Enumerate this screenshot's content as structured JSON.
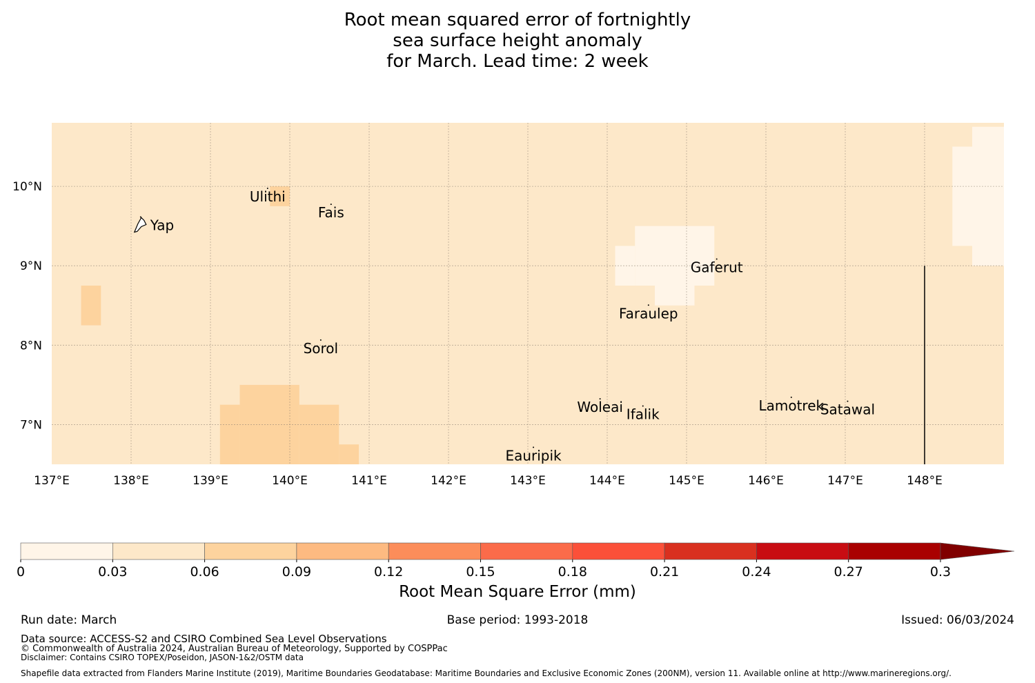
{
  "title": {
    "line1": "Root mean squared error of fortnightly",
    "line2": "sea surface height anomaly",
    "line3": "for March. Lead time: 2 week"
  },
  "map": {
    "lon_ticks": [
      "137°E",
      "138°E",
      "139°E",
      "140°E",
      "141°E",
      "142°E",
      "143°E",
      "144°E",
      "145°E",
      "146°E",
      "147°E",
      "148°E"
    ],
    "lat_ticks": [
      "10°N",
      "9°N",
      "8°N",
      "7°N"
    ],
    "extent": {
      "lon_min": 137.0,
      "lon_max": 149.0,
      "lat_min": 6.5,
      "lat_max": 10.8
    },
    "background_color": "#fde8c9",
    "places": [
      {
        "name": "Ulithi",
        "lon": 139.72,
        "lat": 9.87
      },
      {
        "name": "Fais",
        "lon": 140.52,
        "lat": 9.67
      },
      {
        "name": "Yap",
        "lon": 138.12,
        "lat": 9.51
      },
      {
        "name": "Gaferut",
        "lon": 145.38,
        "lat": 8.98
      },
      {
        "name": "Faraulep",
        "lon": 144.52,
        "lat": 8.4
      },
      {
        "name": "Sorol",
        "lon": 140.39,
        "lat": 7.96
      },
      {
        "name": "Woleai",
        "lon": 143.91,
        "lat": 7.22
      },
      {
        "name": "Ifalik",
        "lon": 144.45,
        "lat": 7.13
      },
      {
        "name": "Lamotrek",
        "lon": 146.32,
        "lat": 7.24
      },
      {
        "name": "Satawal",
        "lon": 147.03,
        "lat": 7.19
      },
      {
        "name": "Eauripik",
        "lon": 143.07,
        "lat": 6.61
      }
    ],
    "boundary_line": {
      "lon": 148.0,
      "lat_from": 6.5,
      "lat_to": 9.0
    }
  },
  "colorbar": {
    "label": "Root Mean Square Error (mm)",
    "ticks": [
      "0",
      "0.03",
      "0.06",
      "0.09",
      "0.12",
      "0.15",
      "0.18",
      "0.21",
      "0.24",
      "0.27",
      "0.3"
    ],
    "colors": [
      "#fff5e8",
      "#fde8c9",
      "#fdd39e",
      "#fdba81",
      "#fc8d5a",
      "#fb6b4a",
      "#fb5039",
      "#d9301f",
      "#c80c12",
      "#a90000",
      "#800000"
    ]
  },
  "footer": {
    "run_date": "Run date: March",
    "base_period": "Base period: 1993-2018",
    "issued": "Issued: 06/03/2024",
    "data_source": "Data source: ACCESS-S2 and CSIRO Combined Sea Level Observations",
    "copyright": "© Commonwealth of Australia 2024, Australian Bureau of Meteorology, Supported by COSPPac",
    "disclaimer": "Disclaimer: Contains CSIRO TOPEX/Poseidon, JASON-1&2/OSTM data",
    "shapefile": "Shapefile data extracted from Flanders Marine Institute (2019), Maritime Boundaries Geodatabase: Maritime Boundaries and Exclusive Economic Zones (200NM), version 11. Available online at http://www.marineregions.org/."
  }
}
